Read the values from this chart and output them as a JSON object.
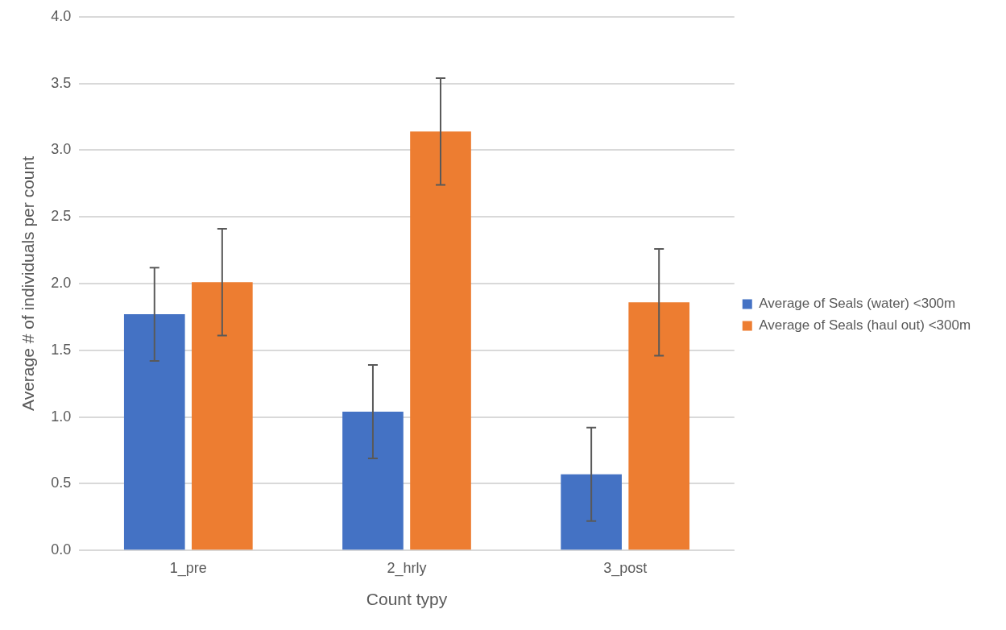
{
  "chart_data": {
    "type": "bar",
    "xlabel": "Count typy",
    "ylabel": "Average # of individuals per count",
    "categories": [
      "1_pre",
      "2_hrly",
      "3_post"
    ],
    "series": [
      {
        "name": "Average of Seals (water) <300m",
        "color": "#4472c4",
        "values": [
          1.77,
          1.04,
          0.57
        ],
        "errors": [
          0.35,
          0.35,
          0.35
        ]
      },
      {
        "name": "Average of Seals (haul out) <300m",
        "color": "#ed7d31",
        "values": [
          2.01,
          3.14,
          1.86
        ],
        "errors": [
          0.4,
          0.4,
          0.4
        ]
      }
    ],
    "ylim": [
      0,
      4
    ],
    "yticks": [
      {
        "value": 0,
        "label": "0.0"
      },
      {
        "value": 0.5,
        "label": "0.5"
      },
      {
        "value": 1,
        "label": "1.0"
      },
      {
        "value": 1.5,
        "label": "1.5"
      },
      {
        "value": 2,
        "label": "2.0"
      },
      {
        "value": 2.5,
        "label": "2.5"
      },
      {
        "value": 3,
        "label": "3.0"
      },
      {
        "value": 3.5,
        "label": "3.5"
      },
      {
        "value": 4,
        "label": "4.0"
      }
    ],
    "grid": "y",
    "legend": "right"
  }
}
